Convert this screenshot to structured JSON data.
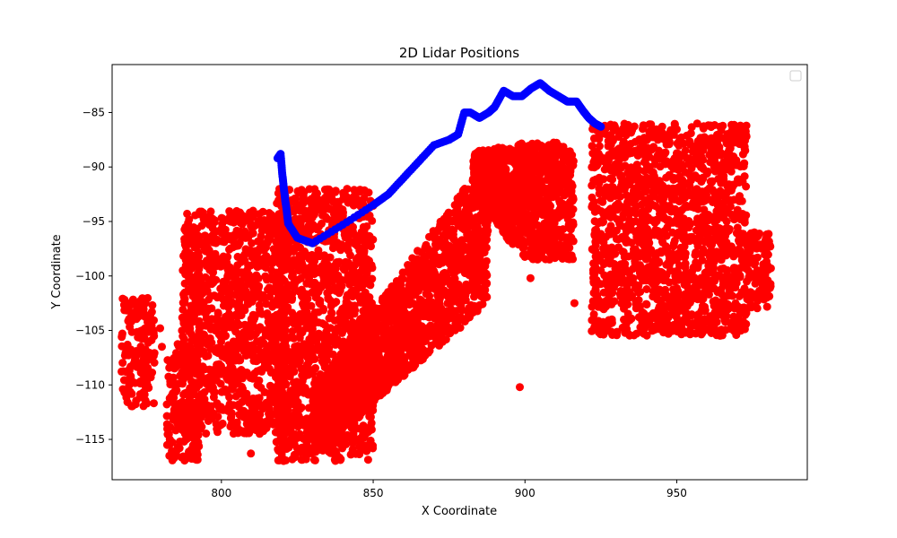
{
  "chart_data": {
    "type": "scatter",
    "title": "2D Lidar Positions",
    "xlabel": "X Coordinate",
    "ylabel": "Y Coordinate",
    "xlim": [
      764,
      993
    ],
    "ylim": [
      -118.7,
      -80.6
    ],
    "xticks": [
      800,
      850,
      900,
      950
    ],
    "yticks": [
      -85,
      -90,
      -95,
      -100,
      -105,
      -110,
      -115
    ],
    "grid": false,
    "legend": {
      "placement": "top-right",
      "entries": []
    },
    "series": [
      {
        "color": "#ff0000",
        "clusters": [
          {
            "x": [
              767,
              778
            ],
            "y_top": -102,
            "y_bottom": -112,
            "shape": "column"
          },
          {
            "x": [
              782,
              793
            ],
            "y_top": -106,
            "y_bottom": -117,
            "shape": "column"
          },
          {
            "x": [
              787,
              822
            ],
            "y_top": -94,
            "y_bottom": -114.5,
            "shape": "slab"
          },
          {
            "x": [
              818,
              850
            ],
            "y_top": -92,
            "y_bottom": -117,
            "shape": "slab"
          },
          {
            "x": [
              830,
              888
            ],
            "y_top": -89,
            "y_bottom": -116.5,
            "shape": "diagonal"
          },
          {
            "x": [
              883,
              916
            ],
            "y_top": -87.5,
            "y_bottom": -106,
            "shape": "arch"
          },
          {
            "x": [
              922,
              973
            ],
            "y_top": -86,
            "y_bottom": -105.5,
            "shape": "slab"
          },
          {
            "x": [
              973,
              981
            ],
            "y_top": -96,
            "y_bottom": -103,
            "shape": "column"
          }
        ],
        "outliers": [
          {
            "x": 898.3,
            "y": -110.2
          },
          {
            "x": 779.8,
            "y": -104.8
          },
          {
            "x": 780.4,
            "y": -106.5
          },
          {
            "x": 809.7,
            "y": -116.3
          },
          {
            "x": 916.3,
            "y": -102.5
          },
          {
            "x": 901.8,
            "y": -100.2
          }
        ]
      },
      {
        "color": "#0000ff",
        "x": [
          818.5,
          819.5,
          820,
          820.5,
          821,
          821.5,
          822,
          825,
          830,
          840,
          850,
          855,
          860,
          865,
          870,
          875,
          878,
          880,
          882,
          885,
          888,
          890,
          893,
          896,
          899,
          902,
          905,
          908,
          911,
          914,
          917,
          919,
          921,
          923,
          925
        ],
        "y": [
          -89.2,
          -88.8,
          -90.5,
          -91.8,
          -93,
          -94,
          -95.2,
          -96.5,
          -97,
          -95.3,
          -93.5,
          -92.5,
          -91,
          -89.5,
          -88,
          -87.5,
          -87,
          -85,
          -85,
          -85.5,
          -85,
          -84.5,
          -83,
          -83.5,
          -83.5,
          -82.8,
          -82.3,
          -83,
          -83.5,
          -84,
          -84,
          -84.8,
          -85.5,
          -86,
          -86.3
        ]
      }
    ]
  }
}
